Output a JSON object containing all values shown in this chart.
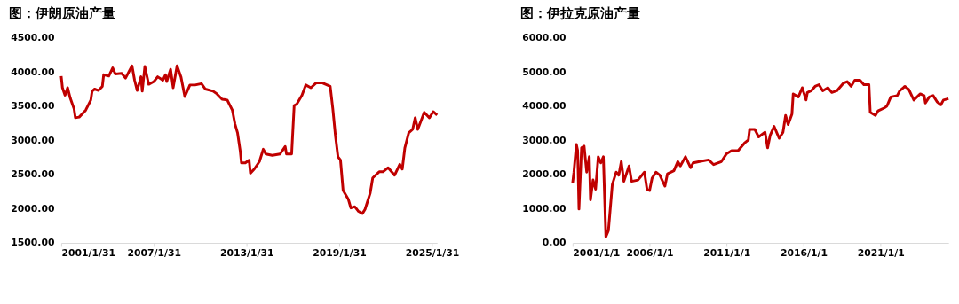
{
  "chart_data": [
    {
      "type": "line",
      "title": "图：伊朗原油产量",
      "grid": false,
      "marker": "none",
      "line_style": "solid",
      "xlim": [
        "2001-01-31",
        "2025-06"
      ],
      "xticks": [
        {
          "value": "2001-01-31",
          "label": "2001/1/31"
        },
        {
          "value": "2007-01-31",
          "label": "2007/1/31"
        },
        {
          "value": "2013-01-31",
          "label": "2013/1/31"
        },
        {
          "value": "2019-01-31",
          "label": "2019/1/31"
        },
        {
          "value": "2025-01-31",
          "label": "2025/1/31"
        }
      ],
      "ylim": [
        1500,
        4500
      ],
      "yticks": [
        {
          "value": 1500,
          "label": "1500.00"
        },
        {
          "value": 2000,
          "label": "2000.00"
        },
        {
          "value": 2500,
          "label": "2500.00"
        },
        {
          "value": 3000,
          "label": "3000.00"
        },
        {
          "value": 3500,
          "label": "3500.00"
        },
        {
          "value": 4000,
          "label": "4000.00"
        },
        {
          "value": 4500,
          "label": "4500.00"
        }
      ],
      "x": [
        "2001-01-31",
        "2001-03",
        "2001-05",
        "2001-07",
        "2001-09",
        "2001-12",
        "2002-01",
        "2002-04",
        "2002-09",
        "2003-01",
        "2003-02",
        "2003-04",
        "2003-07",
        "2003-10",
        "2003-11",
        "2004-03",
        "2004-06",
        "2004-08",
        "2005-01",
        "2005-04",
        "2005-09",
        "2005-11",
        "2006-01",
        "2006-04",
        "2006-05",
        "2006-07",
        "2006-10",
        "2007-02",
        "2007-05",
        "2007-09",
        "2007-11",
        "2007-12",
        "2008-03",
        "2008-05",
        "2008-08",
        "2008-11",
        "2009-02",
        "2009-06",
        "2009-10",
        "2010-03",
        "2010-06",
        "2010-12",
        "2011-03",
        "2011-07",
        "2011-11",
        "2012-03",
        "2012-05",
        "2012-07",
        "2012-09",
        "2012-10",
        "2013-01",
        "2013-04",
        "2013-05",
        "2013-08",
        "2013-12",
        "2014-03",
        "2014-05",
        "2014-10",
        "2015-04",
        "2015-08",
        "2015-09",
        "2016-01",
        "2016-03",
        "2016-05",
        "2016-09",
        "2016-12",
        "2017-04",
        "2017-08",
        "2018-01",
        "2018-07",
        "2018-09",
        "2018-11",
        "2019-01",
        "2019-03",
        "2019-05",
        "2019-09",
        "2019-11",
        "2020-02",
        "2020-05",
        "2020-08",
        "2020-10",
        "2021-02",
        "2021-04",
        "2021-09",
        "2021-12",
        "2022-04",
        "2022-09",
        "2023-01",
        "2023-03",
        "2023-05",
        "2023-08",
        "2023-11",
        "2024-01",
        "2024-03",
        "2024-06",
        "2024-08",
        "2024-12",
        "2025-03",
        "2025-06"
      ],
      "series": [
        {
          "color": "#c00000",
          "values": [
            3940,
            3770,
            3660,
            3770,
            3620,
            3460,
            3330,
            3340,
            3440,
            3590,
            3720,
            3750,
            3730,
            3790,
            3960,
            3940,
            4060,
            3970,
            3980,
            3910,
            4090,
            3880,
            3730,
            3930,
            3720,
            4080,
            3820,
            3860,
            3930,
            3880,
            3960,
            3860,
            4040,
            3770,
            4090,
            3930,
            3640,
            3810,
            3810,
            3830,
            3750,
            3720,
            3680,
            3600,
            3590,
            3440,
            3240,
            3110,
            2850,
            2670,
            2670,
            2710,
            2520,
            2580,
            2690,
            2870,
            2800,
            2780,
            2800,
            2910,
            2800,
            2800,
            3510,
            3530,
            3660,
            3810,
            3770,
            3840,
            3840,
            3790,
            3460,
            3070,
            2760,
            2710,
            2270,
            2140,
            2010,
            2030,
            1960,
            1930,
            1990,
            2230,
            2450,
            2540,
            2540,
            2600,
            2490,
            2650,
            2580,
            2890,
            3110,
            3160,
            3330,
            3160,
            3310,
            3410,
            3330,
            3420,
            3370
          ]
        }
      ]
    },
    {
      "type": "line",
      "title": "图：伊拉克原油产量",
      "grid": false,
      "marker": "none",
      "line_style": "solid",
      "xlim": [
        "2001-01-01",
        "2025-06"
      ],
      "xticks": [
        {
          "value": "2001-01-01",
          "label": "2001/1/1"
        },
        {
          "value": "2006-01-01",
          "label": "2006/1/1"
        },
        {
          "value": "2011-01-01",
          "label": "2011/1/1"
        },
        {
          "value": "2016-01-01",
          "label": "2016/1/1"
        },
        {
          "value": "2021-01-01",
          "label": "2021/1/1"
        }
      ],
      "ylim": [
        0,
        6000
      ],
      "yticks": [
        {
          "value": 0,
          "label": "0.00"
        },
        {
          "value": 1000,
          "label": "1000.00"
        },
        {
          "value": 2000,
          "label": "2000.00"
        },
        {
          "value": 3000,
          "label": "3000.00"
        },
        {
          "value": 4000,
          "label": "4000.00"
        },
        {
          "value": 5000,
          "label": "5000.00"
        },
        {
          "value": 6000,
          "label": "6000.00"
        }
      ],
      "x": [
        "2001-01",
        "2001-02",
        "2001-04",
        "2001-05",
        "2001-06",
        "2001-08",
        "2001-10",
        "2001-12",
        "2002-02",
        "2002-03",
        "2002-05",
        "2002-07",
        "2002-09",
        "2002-11",
        "2003-01",
        "2003-03",
        "2003-05",
        "2003-08",
        "2003-11",
        "2004-01",
        "2004-03",
        "2004-05",
        "2004-09",
        "2004-11",
        "2005-04",
        "2005-09",
        "2005-11",
        "2006-01",
        "2006-03",
        "2006-06",
        "2006-09",
        "2007-01",
        "2007-03",
        "2007-08",
        "2007-11",
        "2008-01",
        "2008-05",
        "2008-09",
        "2008-11",
        "2009-04",
        "2009-11",
        "2010-03",
        "2010-09",
        "2011-01",
        "2011-05",
        "2011-10",
        "2012-03",
        "2012-06",
        "2012-07",
        "2012-11",
        "2013-02",
        "2013-07",
        "2013-09",
        "2013-11",
        "2014-02",
        "2014-06",
        "2014-09",
        "2014-11",
        "2015-01",
        "2015-04",
        "2015-05",
        "2015-09",
        "2015-12",
        "2016-03",
        "2016-04",
        "2016-07",
        "2016-10",
        "2017-01",
        "2017-04",
        "2017-08",
        "2017-11",
        "2018-03",
        "2018-08",
        "2018-11",
        "2019-02",
        "2019-05",
        "2019-09",
        "2019-12",
        "2020-04",
        "2020-05",
        "2020-09",
        "2020-11",
        "2021-04",
        "2021-06",
        "2021-09",
        "2022-02",
        "2022-04",
        "2022-08",
        "2022-11",
        "2023-03",
        "2023-08",
        "2023-11",
        "2023-12",
        "2024-03",
        "2024-06",
        "2024-09",
        "2024-12",
        "2025-02",
        "2025-06"
      ],
      "series": [
        {
          "color": "#c00000",
          "values": [
            1750,
            2070,
            2880,
            2700,
            990,
            2780,
            2830,
            2070,
            2520,
            1260,
            1840,
            1570,
            2520,
            2340,
            2520,
            180,
            360,
            1710,
            2070,
            1980,
            2380,
            1800,
            2250,
            1800,
            1840,
            2070,
            1570,
            1530,
            1890,
            2070,
            1980,
            1660,
            2020,
            2110,
            2380,
            2250,
            2520,
            2200,
            2340,
            2380,
            2430,
            2290,
            2380,
            2610,
            2700,
            2700,
            2920,
            3010,
            3320,
            3320,
            3100,
            3240,
            2780,
            3150,
            3410,
            3060,
            3240,
            3730,
            3460,
            3770,
            4360,
            4270,
            4540,
            4180,
            4400,
            4450,
            4580,
            4630,
            4450,
            4540,
            4400,
            4450,
            4670,
            4720,
            4580,
            4760,
            4760,
            4630,
            4630,
            3820,
            3730,
            3860,
            3950,
            4000,
            4270,
            4310,
            4450,
            4580,
            4490,
            4180,
            4360,
            4310,
            4090,
            4270,
            4310,
            4130,
            4040,
            4180,
            4220
          ]
        }
      ]
    }
  ]
}
